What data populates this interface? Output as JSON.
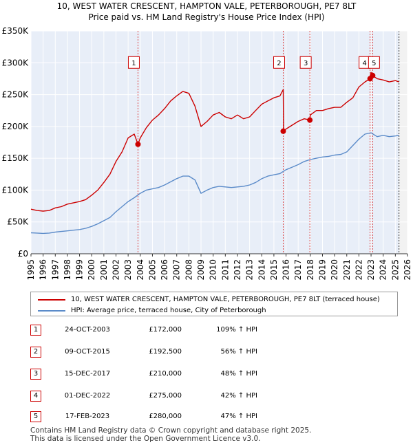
{
  "title_line1": "10, WEST WATER CRESCENT, HAMPTON VALE, PETERBOROUGH, PE7 8LT",
  "title_line2": "Price paid vs. HM Land Registry's House Price Index (HPI)",
  "chart_data": {
    "type": "line",
    "title": "10, WEST WATER CRESCENT, HAMPTON VALE, PETERBOROUGH, PE7 8LT",
    "subtitle": "Price paid vs. HM Land Registry's House Price Index (HPI)",
    "xlabel": "",
    "ylabel": "",
    "xlim": [
      1995,
      2026
    ],
    "ylim": [
      0,
      350000
    ],
    "y_ticks": [
      0,
      50000,
      100000,
      150000,
      200000,
      250000,
      300000,
      350000
    ],
    "y_tick_labels": [
      "£0",
      "£50K",
      "£100K",
      "£150K",
      "£200K",
      "£250K",
      "£300K",
      "£350K"
    ],
    "x_ticks": [
      "1995",
      "1996",
      "1997",
      "1998",
      "1999",
      "2000",
      "2001",
      "2002",
      "2003",
      "2004",
      "2005",
      "2006",
      "2007",
      "2008",
      "2009",
      "2010",
      "2011",
      "2012",
      "2013",
      "2014",
      "2015",
      "2016",
      "2017",
      "2018",
      "2019",
      "2020",
      "2021",
      "2022",
      "2023",
      "2024",
      "2025",
      "2026"
    ],
    "grid": true,
    "series": [
      {
        "name": "10, WEST WATER CRESCENT, HAMPTON VALE, PETERBOROUGH, PE7 8LT (terraced house)",
        "color": "#cc0000",
        "x": [
          1995,
          1995.5,
          1996,
          1996.5,
          1997,
          1997.5,
          1998,
          1998.5,
          1999,
          1999.5,
          2000,
          2000.5,
          2001,
          2001.5,
          2002,
          2002.5,
          2003,
          2003.5,
          2003.81,
          2004,
          2004.5,
          2005,
          2005.5,
          2006,
          2006.5,
          2007,
          2007.5,
          2008,
          2008.5,
          2009,
          2009.5,
          2010,
          2010.5,
          2011,
          2011.5,
          2012,
          2012.5,
          2013,
          2013.5,
          2014,
          2014.5,
          2015,
          2015.5,
          2015.77,
          2015.8,
          2016,
          2016.5,
          2017,
          2017.5,
          2017.96,
          2018,
          2018.5,
          2019,
          2019.5,
          2020,
          2020.5,
          2021,
          2021.5,
          2022,
          2022.5,
          2022.92,
          2023,
          2023.13,
          2023.5,
          2024,
          2024.5,
          2025,
          2025.3
        ],
        "values": [
          70000,
          68000,
          67000,
          68000,
          72000,
          74000,
          78000,
          80000,
          82000,
          85000,
          92000,
          100000,
          112000,
          125000,
          145000,
          160000,
          182000,
          188000,
          172000,
          182000,
          198000,
          210000,
          218000,
          228000,
          240000,
          248000,
          255000,
          252000,
          232000,
          200000,
          208000,
          218000,
          222000,
          215000,
          212000,
          218000,
          212000,
          215000,
          225000,
          235000,
          240000,
          245000,
          248000,
          258000,
          192500,
          196000,
          202000,
          208000,
          212000,
          210000,
          218000,
          225000,
          225000,
          228000,
          230000,
          230000,
          238000,
          245000,
          262000,
          270000,
          275000,
          285000,
          280000,
          275000,
          273000,
          270000,
          272000,
          270000
        ]
      },
      {
        "name": "HPI: Average price, terraced house, City of Peterborough",
        "color": "#5b8bc9",
        "x": [
          1995,
          1995.5,
          1996,
          1996.5,
          1997,
          1997.5,
          1998,
          1998.5,
          1999,
          1999.5,
          2000,
          2000.5,
          2001,
          2001.5,
          2002,
          2002.5,
          2003,
          2003.5,
          2004,
          2004.5,
          2005,
          2005.5,
          2006,
          2006.5,
          2007,
          2007.5,
          2008,
          2008.5,
          2009,
          2009.5,
          2010,
          2010.5,
          2011,
          2011.5,
          2012,
          2012.5,
          2013,
          2013.5,
          2014,
          2014.5,
          2015,
          2015.5,
          2016,
          2016.5,
          2017,
          2017.5,
          2018,
          2018.5,
          2019,
          2019.5,
          2020,
          2020.5,
          2021,
          2021.5,
          2022,
          2022.5,
          2023,
          2023.5,
          2024,
          2024.5,
          2025,
          2025.3
        ],
        "values": [
          33000,
          32500,
          32000,
          32500,
          34000,
          35000,
          36000,
          37000,
          38000,
          40000,
          43000,
          47000,
          52000,
          57000,
          66000,
          74000,
          82000,
          88000,
          95000,
          100000,
          102000,
          104000,
          108000,
          113000,
          118000,
          122000,
          122000,
          116000,
          95000,
          100000,
          104000,
          106000,
          105000,
          104000,
          105000,
          106000,
          108000,
          112000,
          118000,
          122000,
          124000,
          126000,
          132000,
          136000,
          140000,
          145000,
          148000,
          150000,
          152000,
          153000,
          155000,
          156000,
          160000,
          170000,
          180000,
          188000,
          190000,
          184000,
          186000,
          184000,
          185000,
          186000
        ]
      }
    ],
    "markers": [
      {
        "label": "1",
        "x": 2003.81,
        "y": 172000
      },
      {
        "label": "2",
        "x": 2015.77,
        "y": 192500
      },
      {
        "label": "3",
        "x": 2017.96,
        "y": 210000
      },
      {
        "label": "4",
        "x": 2022.92,
        "y": 275000
      },
      {
        "label": "5",
        "x": 2023.13,
        "y": 280000
      }
    ],
    "shaded_region": {
      "from": 2025.3,
      "to": 2026
    }
  },
  "legend": {
    "price_label": "10, WEST WATER CRESCENT, HAMPTON VALE, PETERBOROUGH, PE7 8LT (terraced house)",
    "hpi_label": "HPI: Average price, terraced house, City of Peterborough",
    "price_color": "#cc0000",
    "hpi_color": "#5b8bc9"
  },
  "sales": [
    {
      "num": "1",
      "date": "24-OCT-2003",
      "price": "£172,000",
      "hpi": "109% ↑ HPI"
    },
    {
      "num": "2",
      "date": "09-OCT-2015",
      "price": "£192,500",
      "hpi": "56% ↑ HPI"
    },
    {
      "num": "3",
      "date": "15-DEC-2017",
      "price": "£210,000",
      "hpi": "48% ↑ HPI"
    },
    {
      "num": "4",
      "date": "01-DEC-2022",
      "price": "£275,000",
      "hpi": "42% ↑ HPI"
    },
    {
      "num": "5",
      "date": "17-FEB-2023",
      "price": "£280,000",
      "hpi": "47% ↑ HPI"
    }
  ],
  "footer_line1": "Contains HM Land Registry data © Crown copyright and database right 2025.",
  "footer_line2": "This data is licensed under the Open Government Licence v3.0."
}
